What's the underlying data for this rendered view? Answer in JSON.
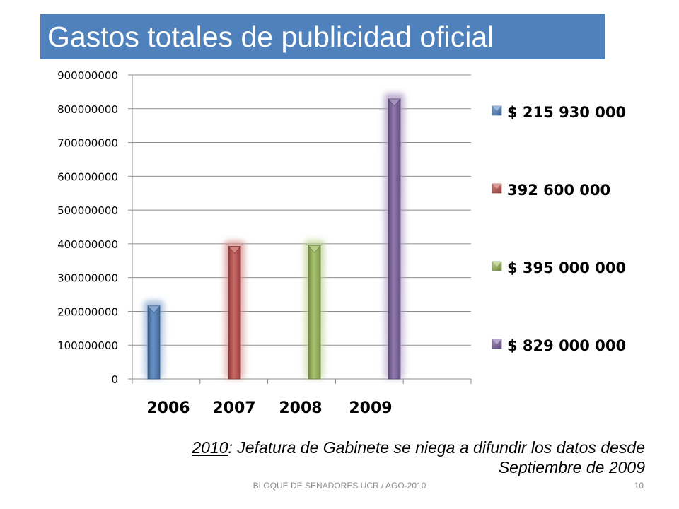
{
  "slide": {
    "title": "Gastos totales de publicidad oficial",
    "footnote_year": "2010",
    "footnote_rest": ": Jefatura de Gabinete se niega a difundir los datos desde Septiembre de 2009",
    "footer_text": "BLOQUE DE SENADORES UCR / AGO-2010",
    "page_number": "10"
  },
  "colors": {
    "title_bg": "#4f81bd",
    "title_text": "#ffffff"
  },
  "chart_data": {
    "type": "bar",
    "title": "",
    "xlabel": "",
    "ylabel": "",
    "categories": [
      "2006",
      "2007",
      "2008",
      "2009"
    ],
    "ylim": [
      0,
      900000000
    ],
    "yticks": [
      0,
      100000000,
      200000000,
      300000000,
      400000000,
      500000000,
      600000000,
      700000000,
      800000000,
      900000000
    ],
    "ytick_labels": [
      "0",
      "100000000",
      "200000000",
      "300000000",
      "400000000",
      "500000000",
      "600000000",
      "700000000",
      "800000000",
      "900000000"
    ],
    "grid": true,
    "legend_position": "right",
    "series": [
      {
        "name": "$ 215 930 000",
        "category": "2006",
        "value": 215930000,
        "color": "#4f81bd"
      },
      {
        "name": "392 600 000",
        "category": "2007",
        "value": 392600000,
        "color": "#c0504d"
      },
      {
        "name": "$ 395 000 000",
        "category": "2008",
        "value": 395000000,
        "color": "#9bbb59"
      },
      {
        "name": "$ 829 000 000",
        "category": "2009",
        "value": 829000000,
        "color": "#8064a2"
      }
    ]
  }
}
